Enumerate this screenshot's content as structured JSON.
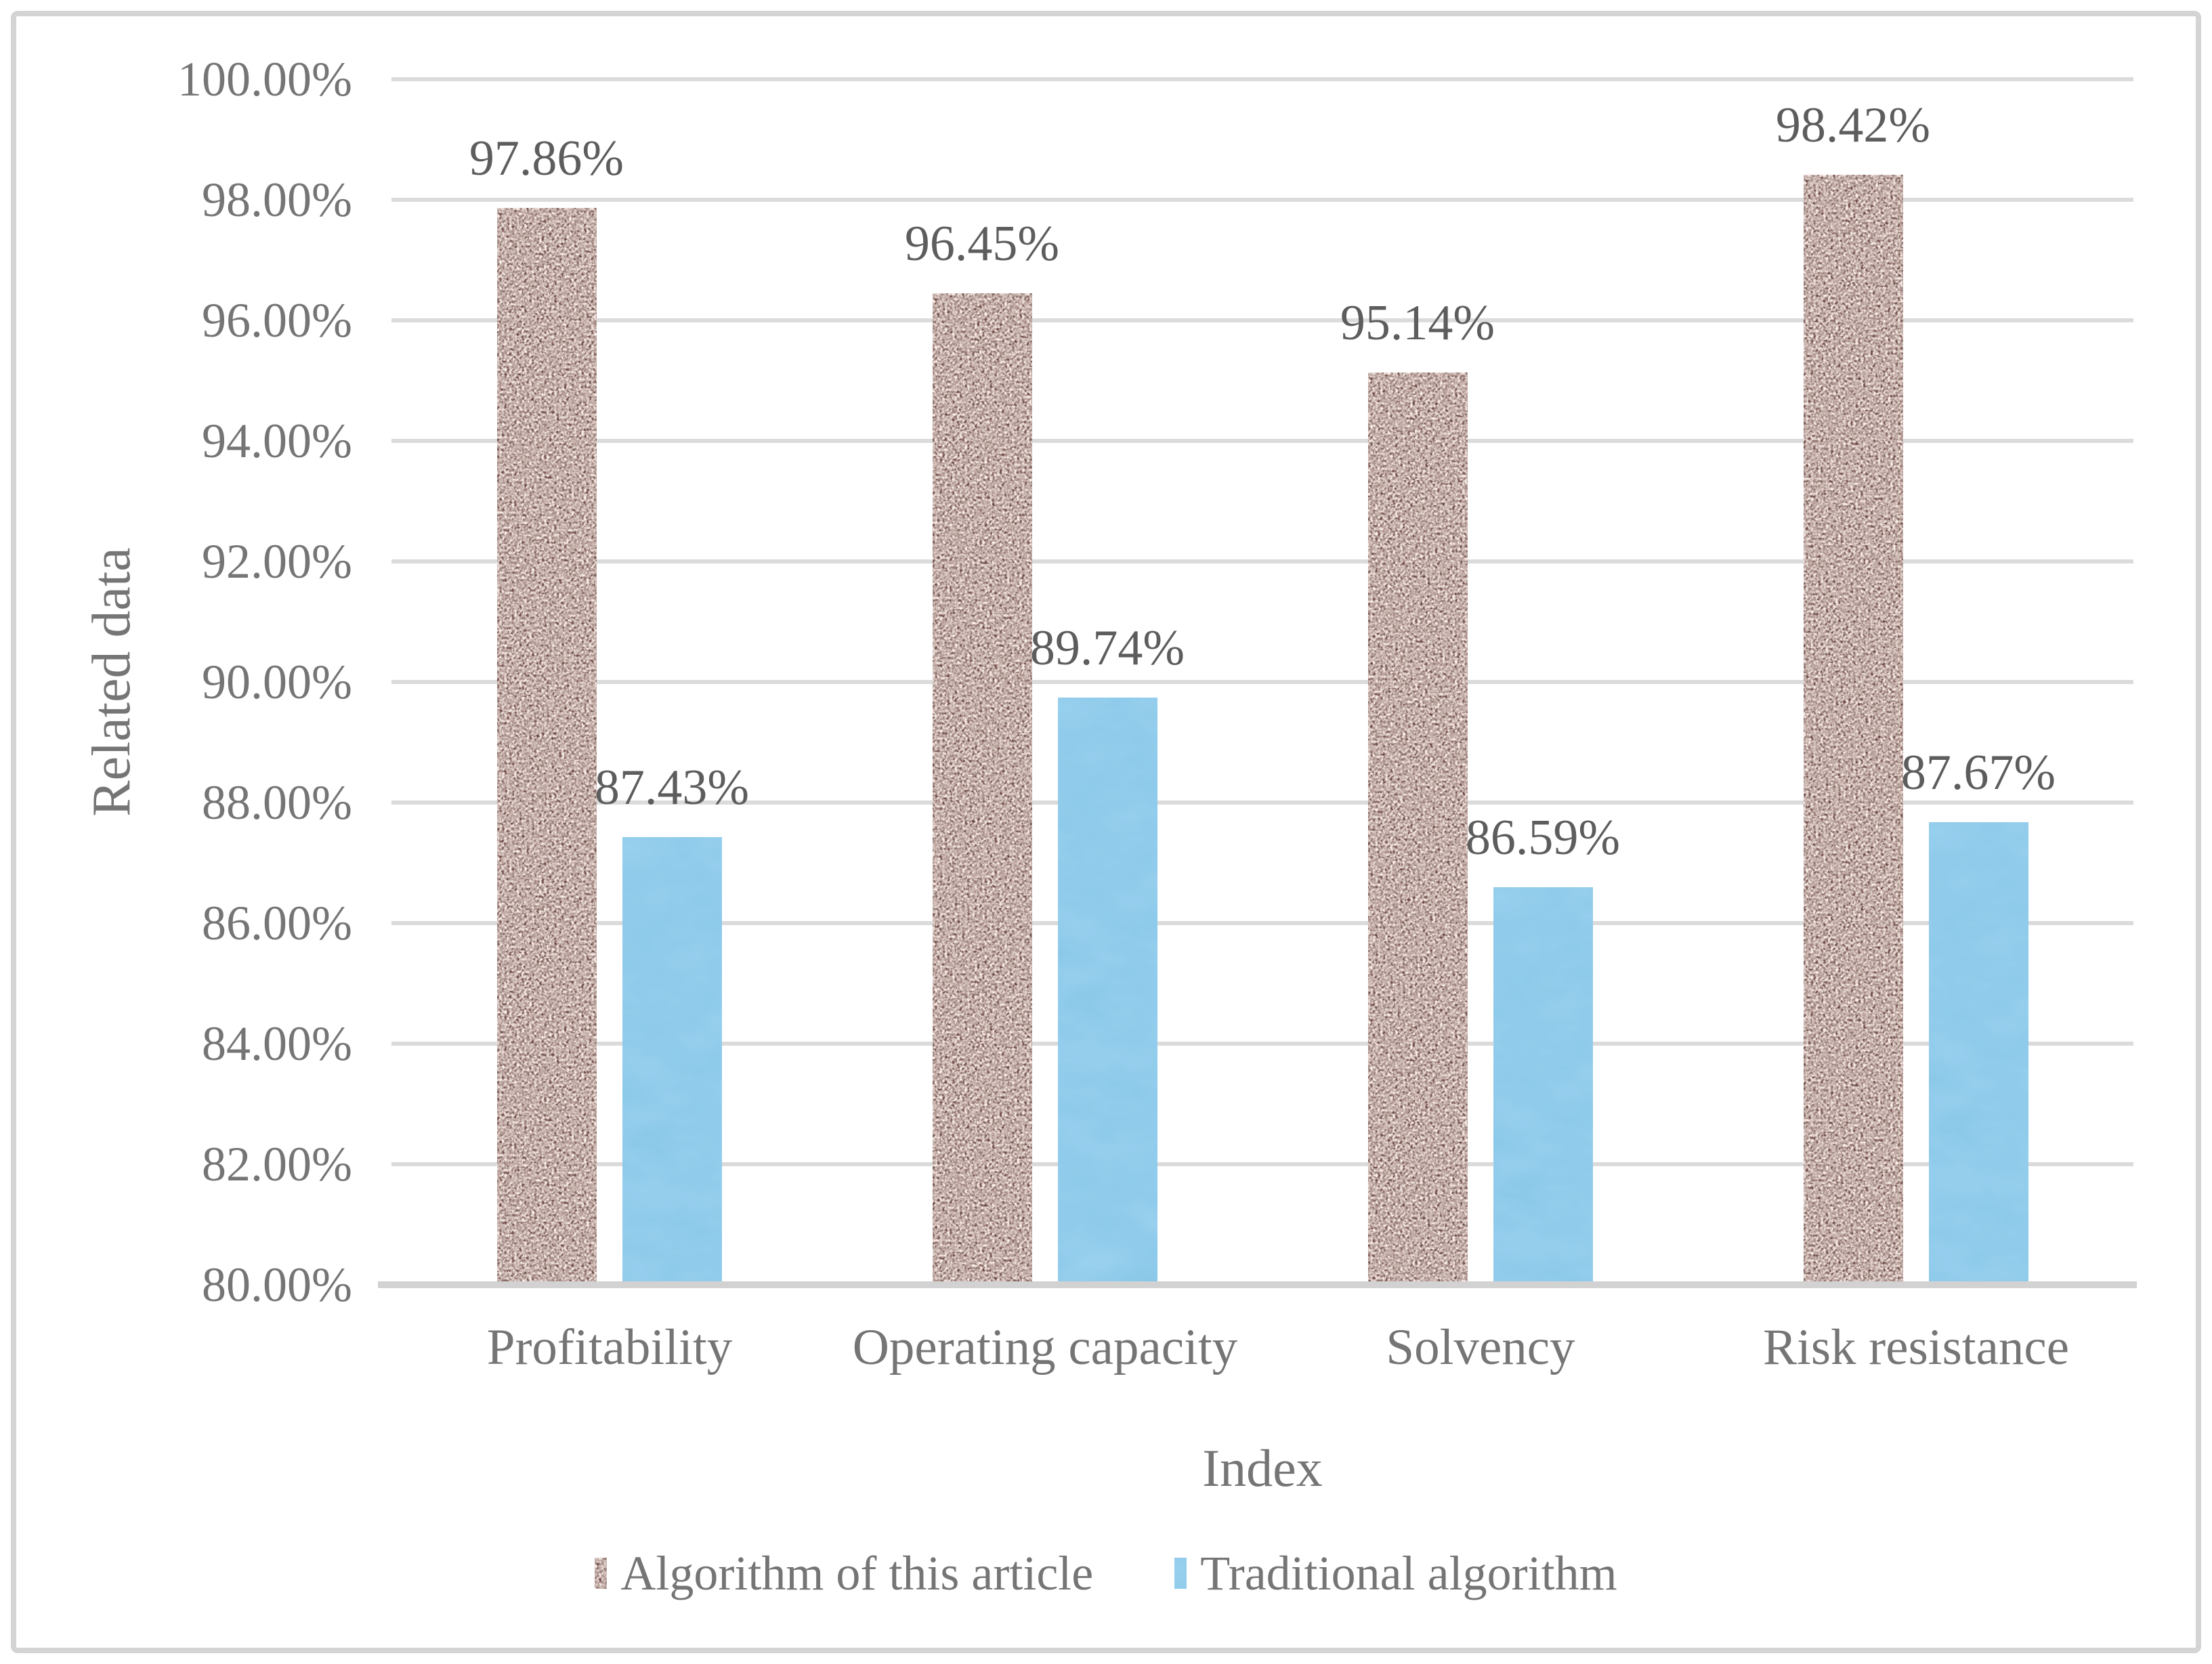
{
  "chart_data": {
    "type": "bar",
    "categories": [
      "Profitability",
      "Operating capacity",
      "Solvency",
      "Risk resistance"
    ],
    "series": [
      {
        "name": "Algorithm of this article",
        "values": [
          97.86,
          96.45,
          95.14,
          98.42
        ],
        "labels": [
          "97.86%",
          "96.45%",
          "95.14%",
          "98.42%"
        ],
        "fill": "brown-noise-texture"
      },
      {
        "name": "Traditional algorithm",
        "values": [
          87.43,
          89.74,
          86.59,
          87.67
        ],
        "labels": [
          "87.43%",
          "89.74%",
          "86.59%",
          "87.67%"
        ],
        "fill": "#4196d3"
      }
    ],
    "xlabel": "Index",
    "ylabel": "Related data",
    "ylim": [
      80,
      100
    ],
    "ytick_step": 2,
    "ytick_labels": [
      "100.00%",
      "98.00%",
      "96.00%",
      "94.00%",
      "92.00%",
      "90.00%",
      "88.00%",
      "86.00%",
      "84.00%",
      "82.00%",
      "80.00%"
    ],
    "grid": true,
    "legend_position": "bottom"
  },
  "colors": {
    "traditional_blue": "#4196d3",
    "texture_dark": "#291211",
    "texture_mid": "#8c6b63",
    "texture_light": "#fae0d9",
    "gridline": "#dbdbdb",
    "axis_text": "#757575",
    "data_label_text": "#5d5d5d",
    "frame_border": "#d4d4d4"
  }
}
